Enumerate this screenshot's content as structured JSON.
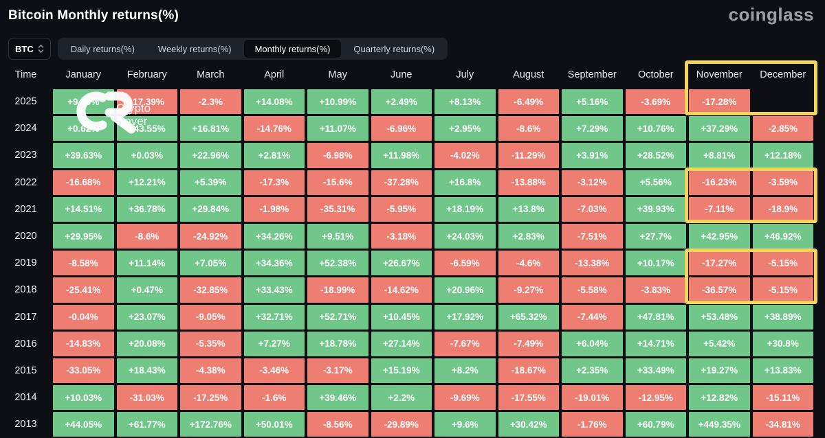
{
  "colors": {
    "background": "#0d0f14",
    "green": "#70c789",
    "red": "#ee7d72",
    "highlight": "#f4d55c",
    "brand_text": "#9ba0ab"
  },
  "header": {
    "title": "Bitcoin Monthly returns(%)",
    "brand": "coinglass"
  },
  "controls": {
    "coin": "BTC",
    "tabs": [
      {
        "label": "Daily returns(%)",
        "active": false
      },
      {
        "label": "Weekly returns(%)",
        "active": false
      },
      {
        "label": "Monthly returns(%)",
        "active": true
      },
      {
        "label": "Quarterly returns(%)",
        "active": false
      }
    ]
  },
  "watermark": {
    "line1": "Crypto",
    "line2": "Rover"
  },
  "table": {
    "columns": [
      "Time",
      "January",
      "February",
      "March",
      "April",
      "May",
      "June",
      "July",
      "August",
      "September",
      "October",
      "November",
      "December"
    ],
    "rows": [
      {
        "year": "2025",
        "values": [
          "+9.29%",
          "-17.39%",
          "-2.3%",
          "+14.08%",
          "+10.99%",
          "+2.49%",
          "+8.13%",
          "-6.49%",
          "+5.16%",
          "-3.69%",
          "-17.28%",
          ""
        ]
      },
      {
        "year": "2024",
        "values": [
          "+0.62%",
          "+43.55%",
          "+16.81%",
          "-14.76%",
          "+11.07%",
          "-6.96%",
          "+2.95%",
          "-8.6%",
          "+7.29%",
          "+10.76%",
          "+37.29%",
          "-2.85%"
        ]
      },
      {
        "year": "2023",
        "values": [
          "+39.63%",
          "+0.03%",
          "+22.96%",
          "+2.81%",
          "-6.98%",
          "+11.98%",
          "-4.02%",
          "-11.29%",
          "+3.91%",
          "+28.52%",
          "+8.81%",
          "+12.18%"
        ]
      },
      {
        "year": "2022",
        "values": [
          "-16.68%",
          "+12.21%",
          "+5.39%",
          "-17.3%",
          "-15.6%",
          "-37.28%",
          "+16.8%",
          "-13.88%",
          "-3.12%",
          "+5.56%",
          "-16.23%",
          "-3.59%"
        ]
      },
      {
        "year": "2021",
        "values": [
          "+14.51%",
          "+36.78%",
          "+29.84%",
          "-1.98%",
          "-35.31%",
          "-5.95%",
          "+18.19%",
          "+13.8%",
          "-7.03%",
          "+39.93%",
          "-7.11%",
          "-18.9%"
        ]
      },
      {
        "year": "2020",
        "values": [
          "+29.95%",
          "-8.6%",
          "-24.92%",
          "+34.26%",
          "+9.51%",
          "-3.18%",
          "+24.03%",
          "+2.83%",
          "-7.51%",
          "+27.7%",
          "+42.95%",
          "+46.92%"
        ]
      },
      {
        "year": "2019",
        "values": [
          "-8.58%",
          "+11.14%",
          "+7.05%",
          "+34.36%",
          "+52.38%",
          "+26.67%",
          "-6.59%",
          "-4.6%",
          "-13.38%",
          "+10.17%",
          "-17.27%",
          "-5.15%"
        ]
      },
      {
        "year": "2018",
        "values": [
          "-25.41%",
          "+0.47%",
          "-32.85%",
          "+33.43%",
          "-18.99%",
          "-14.62%",
          "+20.96%",
          "-9.27%",
          "-5.58%",
          "-3.83%",
          "-36.57%",
          "-5.15%"
        ]
      },
      {
        "year": "2017",
        "values": [
          "-0.04%",
          "+23.07%",
          "-9.05%",
          "+32.71%",
          "+52.71%",
          "+10.45%",
          "+17.92%",
          "+65.32%",
          "-7.44%",
          "+47.81%",
          "+53.48%",
          "+38.89%"
        ]
      },
      {
        "year": "2016",
        "values": [
          "-14.83%",
          "+20.08%",
          "-5.35%",
          "+7.27%",
          "+18.78%",
          "+27.14%",
          "-7.67%",
          "-7.49%",
          "+6.04%",
          "+14.71%",
          "+5.42%",
          "+30.8%"
        ]
      },
      {
        "year": "2015",
        "values": [
          "-33.05%",
          "+18.43%",
          "-4.38%",
          "-3.46%",
          "-3.17%",
          "+15.19%",
          "+8.2%",
          "-18.67%",
          "+2.35%",
          "+33.49%",
          "+19.27%",
          "+13.83%"
        ]
      },
      {
        "year": "2014",
        "values": [
          "+10.03%",
          "-31.03%",
          "-17.25%",
          "-1.6%",
          "+39.46%",
          "+2.2%",
          "-9.69%",
          "-17.55%",
          "-19.01%",
          "-12.95%",
          "+12.82%",
          "-15.11%"
        ]
      },
      {
        "year": "2013",
        "values": [
          "+44.05%",
          "+61.77%",
          "+172.76%",
          "+50.01%",
          "-8.56%",
          "-29.89%",
          "+9.6%",
          "+30.42%",
          "-1.76%",
          "+60.79%",
          "+449.35%",
          "-34.81%"
        ]
      }
    ]
  },
  "highlights": [
    {
      "label": "november-december-2025"
    },
    {
      "label": "november-december-2022-2021"
    },
    {
      "label": "november-december-2019-2018"
    }
  ]
}
